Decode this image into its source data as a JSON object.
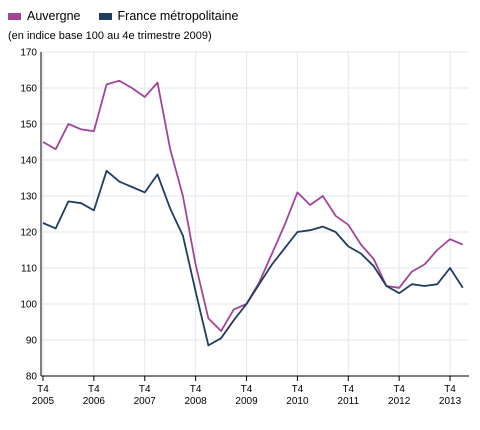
{
  "subtitle": "(en indice base 100 au 4e trimestre 2009)",
  "chart_data": {
    "type": "line",
    "ylim": [
      80,
      170
    ],
    "yticks": [
      80,
      90,
      100,
      110,
      120,
      130,
      140,
      150,
      160,
      170
    ],
    "grid": true,
    "legend_position": "top-left",
    "x_start": "2005 Q4",
    "x_tick_labels": [
      {
        "top": "T4",
        "bottom": "2005"
      },
      {
        "top": "T4",
        "bottom": "2006"
      },
      {
        "top": "T4",
        "bottom": "2007"
      },
      {
        "top": "T4",
        "bottom": "2008"
      },
      {
        "top": "T4",
        "bottom": "2009"
      },
      {
        "top": "T4",
        "bottom": "2010"
      },
      {
        "top": "T4",
        "bottom": "2011"
      },
      {
        "top": "T4",
        "bottom": "2012"
      },
      {
        "top": "T4",
        "bottom": "2013"
      }
    ],
    "x": [
      "2005 Q4",
      "2006 Q1",
      "2006 Q2",
      "2006 Q3",
      "2006 Q4",
      "2007 Q1",
      "2007 Q2",
      "2007 Q3",
      "2007 Q4",
      "2008 Q1",
      "2008 Q2",
      "2008 Q3",
      "2008 Q4",
      "2009 Q1",
      "2009 Q2",
      "2009 Q3",
      "2009 Q4",
      "2010 Q1",
      "2010 Q2",
      "2010 Q3",
      "2010 Q4",
      "2011 Q1",
      "2011 Q2",
      "2011 Q3",
      "2011 Q4",
      "2012 Q1",
      "2012 Q2",
      "2012 Q3",
      "2012 Q4",
      "2013 Q1",
      "2013 Q2",
      "2013 Q3",
      "2013 Q4",
      "2014 Q1"
    ],
    "series": [
      {
        "name": "Auvergne",
        "color": "#a3449a",
        "values": [
          145,
          143,
          150,
          148.5,
          148,
          161,
          162,
          160,
          157.5,
          161.5,
          143,
          130,
          111,
          96,
          92.5,
          98.5,
          100,
          106,
          114,
          122,
          131,
          127.5,
          130,
          124.5,
          122,
          116.5,
          112.5,
          105,
          104.5,
          109,
          111,
          115,
          118,
          116.5
        ]
      },
      {
        "name": "France métropolitaine",
        "color": "#1f3d63",
        "values": [
          122.5,
          121,
          128.5,
          128,
          126,
          137,
          134,
          132.5,
          131,
          136,
          126.5,
          119,
          103.5,
          88.5,
          90.5,
          95.5,
          100,
          105.5,
          111,
          115.5,
          120,
          120.5,
          121.5,
          120,
          116,
          114,
          110.5,
          105,
          103,
          105.5,
          105,
          105.5,
          110,
          104.5
        ]
      }
    ]
  }
}
